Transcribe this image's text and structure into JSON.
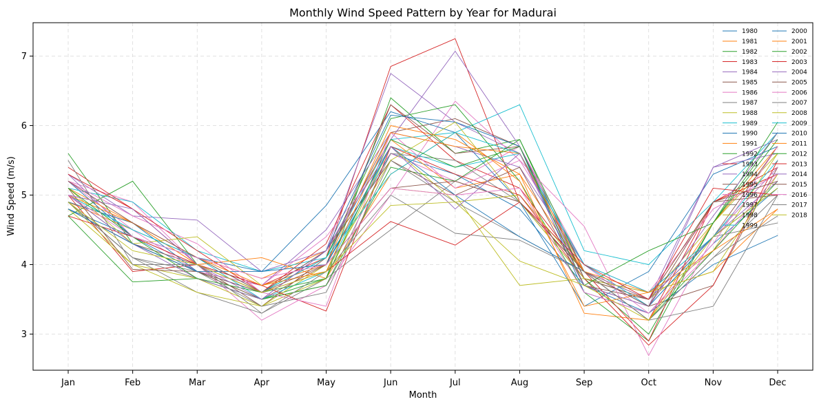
{
  "chart_data": {
    "type": "line",
    "title": "Monthly Wind Speed Pattern by Year for Madurai",
    "xlabel": "Month",
    "ylabel": "Wind Speed (m/s)",
    "categories": [
      "Jan",
      "Feb",
      "Mar",
      "Apr",
      "May",
      "Jun",
      "Jul",
      "Aug",
      "Sep",
      "Oct",
      "Nov",
      "Dec"
    ],
    "ylim": [
      2.48,
      7.48
    ],
    "yticks": [
      3,
      4,
      5,
      6,
      7
    ],
    "grid": true,
    "legend_position": "top-right",
    "legend_columns": 2,
    "series": [
      {
        "name": "1980",
        "color": "#1f77b4",
        "values": [
          5.2,
          4.4,
          3.9,
          3.7,
          4.0,
          5.6,
          5.3,
          4.8,
          3.7,
          3.3,
          4.3,
          5.1
        ]
      },
      {
        "name": "1981",
        "color": "#ff7f0e",
        "values": [
          4.9,
          4.5,
          4.1,
          3.8,
          4.2,
          5.8,
          5.1,
          5.3,
          3.9,
          3.5,
          4.9,
          5.3
        ]
      },
      {
        "name": "1982",
        "color": "#2ca02c",
        "values": [
          5.6,
          4.3,
          3.9,
          3.5,
          3.8,
          6.4,
          5.6,
          5.8,
          3.8,
          3.0,
          4.6,
          5.9
        ]
      },
      {
        "name": "1983",
        "color": "#d62728",
        "values": [
          5.0,
          3.9,
          4.0,
          3.7,
          4.1,
          6.85,
          7.25,
          4.9,
          3.9,
          3.2,
          4.9,
          5.3
        ]
      },
      {
        "name": "1984",
        "color": "#9467bd",
        "values": [
          5.3,
          4.7,
          4.64,
          3.9,
          4.2,
          6.75,
          6.05,
          5.6,
          3.8,
          3.5,
          5.4,
          5.8
        ]
      },
      {
        "name": "1985",
        "color": "#8c564b",
        "values": [
          4.8,
          4.3,
          4.0,
          3.4,
          4.1,
          5.9,
          6.1,
          5.7,
          3.7,
          3.4,
          3.7,
          5.4
        ]
      },
      {
        "name": "1986",
        "color": "#e377c2",
        "values": [
          5.2,
          4.9,
          4.0,
          3.2,
          3.7,
          5.0,
          6.35,
          5.5,
          4.0,
          3.3,
          4.2,
          5.3
        ]
      },
      {
        "name": "1987",
        "color": "#7f7f7f",
        "values": [
          4.9,
          4.1,
          3.6,
          3.3,
          3.8,
          4.5,
          5.2,
          4.9,
          3.9,
          3.2,
          4.1,
          5.0
        ]
      },
      {
        "name": "1988",
        "color": "#bcbd22",
        "values": [
          4.8,
          4.0,
          3.6,
          3.4,
          4.0,
          5.1,
          5.0,
          3.7,
          3.8,
          3.5,
          4.6,
          5.6
        ]
      },
      {
        "name": "1989",
        "color": "#17becf",
        "values": [
          5.1,
          4.9,
          4.2,
          3.9,
          4.1,
          5.8,
          5.9,
          6.3,
          4.2,
          4.0,
          4.9,
          5.9
        ]
      },
      {
        "name": "1990",
        "color": "#1f77b4",
        "values": [
          4.8,
          4.4,
          4.1,
          3.9,
          4.85,
          6.2,
          5.9,
          4.9,
          3.4,
          3.9,
          5.3,
          5.7
        ]
      },
      {
        "name": "1991",
        "color": "#ff7f0e",
        "values": [
          4.9,
          4.6,
          4.0,
          3.7,
          4.0,
          6.0,
          5.8,
          5.3,
          3.3,
          3.2,
          4.6,
          5.7
        ]
      },
      {
        "name": "1992",
        "color": "#2ca02c",
        "values": [
          4.7,
          5.2,
          4.0,
          3.6,
          4.1,
          6.1,
          6.3,
          5.2,
          3.6,
          2.9,
          4.6,
          6.05
        ]
      },
      {
        "name": "1993",
        "color": "#d62728",
        "values": [
          5.4,
          4.8,
          4.2,
          3.6,
          4.3,
          6.3,
          5.5,
          5.1,
          3.9,
          2.9,
          4.9,
          5.4
        ]
      },
      {
        "name": "1994",
        "color": "#9467bd",
        "values": [
          5.3,
          4.4,
          4.0,
          3.7,
          4.5,
          5.9,
          5.7,
          5.4,
          4.0,
          3.4,
          5.4,
          5.6
        ]
      },
      {
        "name": "1995",
        "color": "#8c564b",
        "values": [
          5.0,
          4.3,
          3.9,
          3.5,
          4.0,
          6.3,
          5.6,
          5.7,
          3.8,
          3.5,
          4.4,
          5.7
        ]
      },
      {
        "name": "1996",
        "color": "#e377c2",
        "values": [
          5.2,
          4.5,
          3.9,
          3.7,
          4.4,
          5.6,
          5.2,
          5.7,
          4.0,
          3.6,
          4.8,
          5.3
        ]
      },
      {
        "name": "1997",
        "color": "#7f7f7f",
        "values": [
          4.9,
          4.1,
          3.8,
          3.5,
          3.7,
          5.6,
          5.5,
          4.9,
          3.8,
          3.6,
          4.4,
          4.6
        ]
      },
      {
        "name": "1998",
        "color": "#bcbd22",
        "values": [
          4.9,
          4.0,
          3.8,
          3.4,
          3.8,
          5.7,
          4.9,
          5.0,
          3.9,
          3.5,
          4.2,
          5.6
        ]
      },
      {
        "name": "1999",
        "color": "#17becf",
        "values": [
          5.0,
          4.5,
          4.1,
          3.5,
          3.9,
          5.7,
          5.4,
          5.6,
          4.0,
          3.4,
          4.4,
          5.4
        ]
      },
      {
        "name": "2000",
        "color": "#1f77b4",
        "values": [
          4.9,
          4.6,
          3.9,
          3.6,
          4.2,
          6.15,
          6.05,
          5.7,
          3.6,
          3.3,
          4.0,
          4.42
        ]
      },
      {
        "name": "2001",
        "color": "#ff7f0e",
        "values": [
          5.1,
          4.6,
          4.0,
          4.1,
          3.8,
          5.3,
          5.9,
          5.2,
          3.4,
          3.6,
          3.9,
          4.8
        ]
      },
      {
        "name": "2002",
        "color": "#2ca02c",
        "values": [
          4.7,
          3.75,
          3.8,
          3.5,
          3.7,
          5.4,
          5.2,
          5.8,
          3.9,
          3.2,
          4.2,
          5.2
        ]
      },
      {
        "name": "2003",
        "color": "#d62728",
        "values": [
          4.7,
          4.4,
          4.0,
          3.7,
          3.33,
          5.7,
          5.3,
          5.0,
          3.8,
          2.84,
          3.7,
          5.5
        ]
      },
      {
        "name": "2004",
        "color": "#9467bd",
        "values": [
          5.0,
          4.3,
          3.8,
          3.5,
          4.2,
          5.8,
          7.07,
          5.7,
          3.9,
          3.5,
          4.4,
          5.2
        ]
      },
      {
        "name": "2005",
        "color": "#8c564b",
        "values": [
          5.1,
          3.93,
          3.9,
          3.6,
          4.2,
          5.5,
          5.0,
          5.4,
          3.7,
          3.5,
          4.9,
          5.0
        ]
      },
      {
        "name": "2006",
        "color": "#e377c2",
        "values": [
          5.2,
          4.7,
          4.3,
          3.6,
          3.4,
          5.9,
          5.1,
          5.5,
          4.55,
          2.69,
          4.4,
          5.4
        ]
      },
      {
        "name": "2007",
        "color": "#7f7f7f",
        "values": [
          4.9,
          4.1,
          3.9,
          3.4,
          3.6,
          5.5,
          4.9,
          4.4,
          3.9,
          3.2,
          3.4,
          5.0
        ]
      },
      {
        "name": "2008",
        "color": "#bcbd22",
        "values": [
          5.1,
          4.3,
          4.4,
          3.7,
          3.9,
          5.5,
          6.05,
          4.9,
          3.8,
          3.6,
          3.9,
          5.3
        ]
      },
      {
        "name": "2009",
        "color": "#17becf",
        "values": [
          5.0,
          4.5,
          4.1,
          3.6,
          4.1,
          5.3,
          5.9,
          5.6,
          4.0,
          3.6,
          4.4,
          5.5
        ]
      },
      {
        "name": "2010",
        "color": "#1f77b4",
        "values": [
          4.8,
          4.3,
          3.9,
          3.9,
          4.0,
          5.7,
          5.0,
          4.4,
          3.9,
          3.4,
          4.4,
          5.1
        ]
      },
      {
        "name": "2011",
        "color": "#ff7f0e",
        "values": [
          5.0,
          4.6,
          4.1,
          3.7,
          3.9,
          5.9,
          5.7,
          5.6,
          3.9,
          3.6,
          4.2,
          4.8
        ]
      },
      {
        "name": "2012",
        "color": "#2ca02c",
        "values": [
          5.1,
          4.4,
          3.8,
          3.6,
          3.8,
          5.8,
          5.4,
          5.7,
          3.7,
          4.2,
          4.6,
          5.8
        ]
      },
      {
        "name": "2013",
        "color": "#d62728",
        "values": [
          5.3,
          4.8,
          4.0,
          3.6,
          3.9,
          4.62,
          4.28,
          4.9,
          4.0,
          3.5,
          5.1,
          5.0
        ]
      },
      {
        "name": "2014",
        "color": "#9467bd",
        "values": [
          5.0,
          4.8,
          4.0,
          3.5,
          4.2,
          5.7,
          4.8,
          5.6,
          3.7,
          3.4,
          4.7,
          5.9
        ]
      },
      {
        "name": "2015",
        "color": "#8c564b",
        "values": [
          5.2,
          4.6,
          4.1,
          3.6,
          4.0,
          5.1,
          5.2,
          4.9,
          3.9,
          3.4,
          4.9,
          5.2
        ]
      },
      {
        "name": "2016",
        "color": "#e377c2",
        "values": [
          5.0,
          4.4,
          4.1,
          3.8,
          4.0,
          5.1,
          5.0,
          5.1,
          3.6,
          3.3,
          4.3,
          5.7
        ]
      },
      {
        "name": "2017",
        "color": "#7f7f7f",
        "values": [
          5.5,
          4.0,
          4.0,
          3.3,
          3.9,
          5.0,
          4.45,
          4.35,
          3.9,
          3.2,
          4.1,
          4.7
        ]
      },
      {
        "name": "2018",
        "color": "#bcbd22",
        "values": [
          4.9,
          4.2,
          4.0,
          3.6,
          3.9,
          4.85,
          4.9,
          4.05,
          3.7,
          3.2,
          4.4,
          5.1
        ]
      }
    ]
  }
}
